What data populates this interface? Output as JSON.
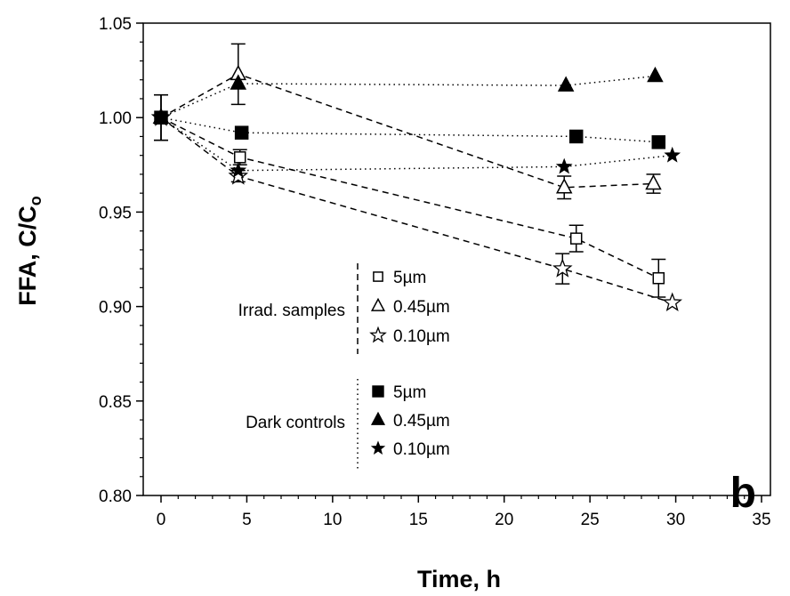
{
  "chart_data": {
    "type": "scatter",
    "title": "",
    "panel_label": "b",
    "xlabel": "Time, h",
    "ylabel_main": "FFA, C/C",
    "ylabel_sub": "o",
    "xlim": [
      0,
      35
    ],
    "ylim": [
      0.8,
      1.05
    ],
    "x_ticks": [
      "0",
      "5",
      "10",
      "15",
      "20",
      "25",
      "30",
      "35"
    ],
    "y_ticks": [
      "0.80",
      "0.85",
      "0.90",
      "0.95",
      "1.00",
      "1.05"
    ],
    "grid": false,
    "legend": {
      "placement": "center",
      "groups": [
        {
          "label": "Irrad. samples",
          "line_style": "dashed",
          "entries": [
            {
              "name": "5µm",
              "marker": "square-open"
            },
            {
              "name": "0.45µm",
              "marker": "triangle-open"
            },
            {
              "name": "0.10µm",
              "marker": "star-open"
            }
          ]
        },
        {
          "label": "Dark controls",
          "line_style": "dotted",
          "entries": [
            {
              "name": "5µm",
              "marker": "square-filled"
            },
            {
              "name": "0.45µm",
              "marker": "triangle-filled"
            },
            {
              "name": "0.10µm",
              "marker": "star-filled"
            }
          ]
        }
      ]
    },
    "series": [
      {
        "group": "Irrad. samples",
        "name": "5µm",
        "marker": "square-open",
        "line": "dashed",
        "x": [
          0,
          4.6,
          24.2,
          29.0
        ],
        "y": [
          1.0,
          0.979,
          0.936,
          0.915
        ],
        "err": [
          0.012,
          0.004,
          0.007,
          0.01
        ]
      },
      {
        "group": "Irrad. samples",
        "name": "0.45µm",
        "marker": "triangle-open",
        "line": "dashed",
        "x": [
          0,
          4.5,
          23.5,
          28.7
        ],
        "y": [
          1.0,
          1.023,
          0.963,
          0.965
        ],
        "err": [
          0.012,
          0.016,
          0.006,
          0.005
        ]
      },
      {
        "group": "Irrad. samples",
        "name": "0.10µm",
        "marker": "star-open",
        "line": "dashed",
        "x": [
          0,
          4.5,
          23.4,
          29.8
        ],
        "y": [
          1.0,
          0.969,
          0.92,
          0.902
        ],
        "err": [
          0.012,
          0.003,
          0.008,
          0.0
        ]
      },
      {
        "group": "Dark controls",
        "name": "5µm",
        "marker": "square-filled",
        "line": "dotted",
        "x": [
          0,
          4.7,
          24.2,
          29.0
        ],
        "y": [
          1.0,
          0.992,
          0.99,
          0.987
        ],
        "err": [
          0,
          0,
          0,
          0
        ]
      },
      {
        "group": "Dark controls",
        "name": "0.45µm",
        "marker": "triangle-filled",
        "line": "dotted",
        "x": [
          0,
          4.5,
          23.6,
          28.8
        ],
        "y": [
          1.0,
          1.018,
          1.017,
          1.022
        ],
        "err": [
          0,
          0,
          0,
          0
        ]
      },
      {
        "group": "Dark controls",
        "name": "0.10µm",
        "marker": "star-filled",
        "line": "dotted",
        "x": [
          0,
          4.5,
          23.5,
          29.8
        ],
        "y": [
          1.0,
          0.972,
          0.974,
          0.98
        ],
        "err": [
          0,
          0,
          0,
          0
        ]
      }
    ]
  }
}
